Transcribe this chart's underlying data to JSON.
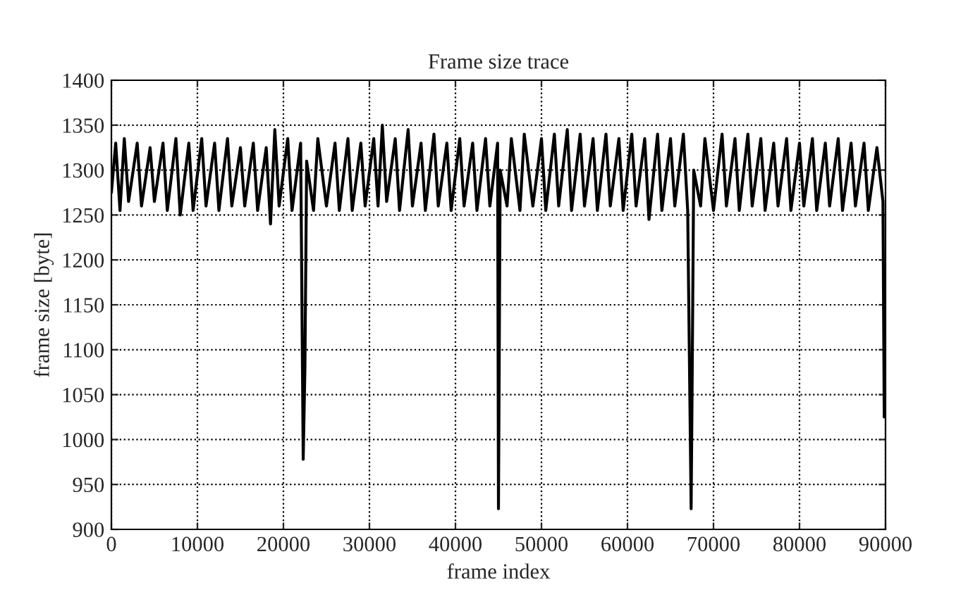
{
  "chart_data": {
    "type": "line",
    "title": "Frame size trace",
    "xlabel": "frame index",
    "ylabel": "frame size [byte]",
    "x": [
      0,
      500,
      1000,
      1500,
      2000,
      3000,
      3500,
      4500,
      5000,
      6000,
      6500,
      7500,
      8000,
      9000,
      9500,
      10500,
      11000,
      12000,
      12500,
      13500,
      14000,
      15000,
      15500,
      16500,
      17000,
      18000,
      18500,
      19000,
      19500,
      20500,
      21000,
      22000,
      22300,
      22500,
      22700,
      23500,
      24000,
      25000,
      26000,
      26500,
      27500,
      28000,
      29000,
      29500,
      30500,
      31000,
      31500,
      32000,
      33000,
      33500,
      34500,
      35000,
      36000,
      36500,
      37500,
      38000,
      39000,
      39500,
      40500,
      41000,
      42000,
      42500,
      43500,
      44000,
      44900,
      45000,
      45200,
      46000,
      46500,
      47500,
      48000,
      49000,
      50000,
      50500,
      51500,
      52000,
      53000,
      53500,
      54500,
      55000,
      56000,
      56500,
      57500,
      58000,
      59000,
      59500,
      60500,
      61000,
      62000,
      62500,
      63500,
      64000,
      65000,
      65500,
      66500,
      67000,
      67400,
      67500,
      67700,
      68500,
      69000,
      70000,
      71000,
      71500,
      72500,
      73000,
      74000,
      74500,
      75500,
      76000,
      77000,
      77500,
      78500,
      79000,
      80000,
      80500,
      81500,
      82000,
      83000,
      83500,
      84500,
      85000,
      86000,
      86500,
      87500,
      88000,
      89000,
      89700,
      89850,
      90000
    ],
    "series": [
      {
        "color": "#000000",
        "values": [
          1275,
          1330,
          1255,
          1335,
          1265,
          1330,
          1260,
          1325,
          1265,
          1330,
          1255,
          1335,
          1250,
          1330,
          1255,
          1335,
          1260,
          1330,
          1255,
          1335,
          1260,
          1325,
          1260,
          1330,
          1255,
          1325,
          1240,
          1345,
          1260,
          1335,
          1255,
          1330,
          978,
          1080,
          1310,
          1255,
          1335,
          1260,
          1330,
          1255,
          1335,
          1255,
          1330,
          1260,
          1335,
          1260,
          1350,
          1265,
          1335,
          1255,
          1345,
          1260,
          1330,
          1255,
          1340,
          1260,
          1330,
          1255,
          1335,
          1260,
          1330,
          1255,
          1335,
          1260,
          1330,
          923,
          1300,
          1260,
          1335,
          1255,
          1340,
          1260,
          1335,
          1255,
          1340,
          1260,
          1345,
          1255,
          1340,
          1260,
          1335,
          1255,
          1340,
          1260,
          1335,
          1255,
          1340,
          1260,
          1335,
          1245,
          1340,
          1255,
          1335,
          1260,
          1340,
          1255,
          923,
          1040,
          1300,
          1260,
          1335,
          1255,
          1340,
          1260,
          1335,
          1255,
          1340,
          1260,
          1335,
          1255,
          1330,
          1260,
          1335,
          1255,
          1330,
          1260,
          1335,
          1255,
          1330,
          1260,
          1335,
          1255,
          1330,
          1260,
          1330,
          1255,
          1325,
          1265,
          1025,
          1165
        ]
      }
    ],
    "xlim": [
      0,
      90000
    ],
    "xticks": [
      0,
      10000,
      20000,
      30000,
      40000,
      50000,
      60000,
      70000,
      80000,
      90000
    ],
    "ylim": [
      900,
      1400
    ],
    "yticks": [
      900,
      950,
      1000,
      1050,
      1100,
      1150,
      1200,
      1250,
      1300,
      1350,
      1400
    ],
    "grid": true,
    "line_style": "solid",
    "marker": "none"
  }
}
